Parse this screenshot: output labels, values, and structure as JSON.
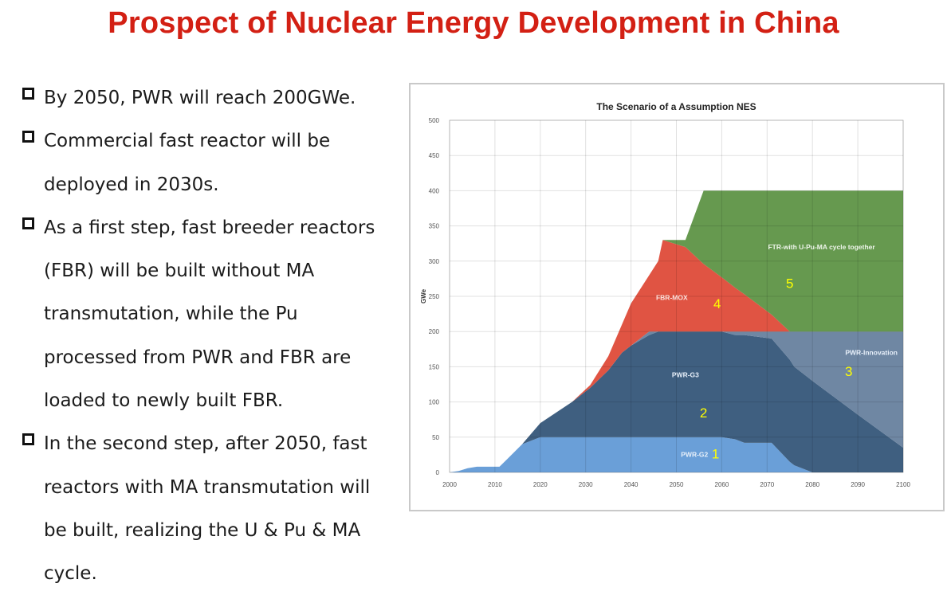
{
  "slide": {
    "title": "Prospect of Nuclear Energy Development in China",
    "bullets": [
      {
        "lines": [
          "By 2050, PWR will reach 200GWe."
        ]
      },
      {
        "lines": [
          "Commercial fast reactor will be",
          "deployed in 2030s."
        ]
      },
      {
        "lines": [
          "As a first step, fast breeder reactors",
          "(FBR) will be built without MA",
          "transmutation, while the Pu",
          "processed from PWR and FBR are",
          "loaded to newly built FBR."
        ]
      },
      {
        "lines": [
          "In the second step,  after 2050, fast",
          "reactors with MA transmutation will",
          "be built, realizing the U & Pu & MA",
          "cycle."
        ]
      }
    ]
  },
  "chart_data": {
    "type": "area",
    "stacked": true,
    "title": "The Scenario of a Assumption NES",
    "xlabel": "",
    "ylabel": "GWe",
    "xlim": [
      2000,
      2100
    ],
    "ylim": [
      0,
      500
    ],
    "xticks": [
      2000,
      2010,
      2020,
      2030,
      2040,
      2050,
      2060,
      2070,
      2080,
      2090,
      2100
    ],
    "yticks": [
      0,
      50,
      100,
      150,
      200,
      250,
      300,
      350,
      400,
      450,
      500
    ],
    "grid": true,
    "x": [
      2000,
      2002,
      2004,
      2006,
      2011,
      2016,
      2020,
      2027,
      2031,
      2035,
      2038,
      2040,
      2044,
      2046,
      2047,
      2052,
      2056,
      2060,
      2063,
      2065,
      2071,
      2075,
      2076,
      2080,
      2090,
      2100
    ],
    "series": [
      {
        "name": "PWR-G2",
        "number": "1",
        "color": "#6a9fd8",
        "values": [
          0,
          2,
          6,
          8,
          8,
          40,
          50,
          50,
          50,
          50,
          50,
          50,
          50,
          50,
          50,
          50,
          50,
          50,
          47,
          42,
          42,
          15,
          10,
          0,
          0,
          0
        ]
      },
      {
        "name": "PWR-G3",
        "number": "2",
        "color": "#3f5f80",
        "values": [
          0,
          0,
          0,
          0,
          0,
          0,
          20,
          50,
          70,
          95,
          120,
          130,
          145,
          150,
          150,
          150,
          150,
          150,
          148,
          153,
          148,
          145,
          140,
          130,
          82,
          35
        ]
      },
      {
        "name": "PWR-Innovation",
        "number": "3",
        "color": "#6f87a3",
        "values": [
          0,
          0,
          0,
          0,
          0,
          0,
          0,
          0,
          0,
          0,
          0,
          0,
          5,
          0,
          0,
          0,
          0,
          0,
          5,
          5,
          10,
          40,
          50,
          70,
          118,
          165
        ]
      },
      {
        "name": "FBR-MOX",
        "number": "4",
        "color": "#e05443",
        "values": [
          0,
          0,
          0,
          0,
          0,
          0,
          0,
          0,
          4,
          20,
          40,
          60,
          80,
          100,
          130,
          120,
          96,
          77,
          62,
          53,
          24,
          0,
          0,
          0,
          0,
          0
        ]
      },
      {
        "name": "FTR-with U-Pu-MA  cycle together",
        "number": "5",
        "color": "#66994f",
        "values": [
          0,
          0,
          0,
          0,
          0,
          0,
          0,
          0,
          0,
          0,
          0,
          0,
          0,
          0,
          0,
          10,
          104,
          123,
          138,
          147,
          176,
          200,
          200,
          200,
          200,
          200
        ]
      }
    ],
    "annotations": [
      {
        "text": "PWR-G2",
        "x": 2054,
        "y": 22,
        "color": "#e8f0fa"
      },
      {
        "text": "PWR-G3",
        "x": 2052,
        "y": 135,
        "color": "#e8f0fa"
      },
      {
        "text": "PWR-Innovation",
        "x": 2093,
        "y": 167,
        "color": "#e8f0fa"
      },
      {
        "text": "FBR-MOX",
        "x": 2049,
        "y": 245,
        "color": "#fbe3df"
      },
      {
        "text": "FTR-with U-Pu-MA  cycle together",
        "x": 2082,
        "y": 317,
        "color": "#eef5ea"
      },
      {
        "text": "1",
        "x": 2053,
        "y": 20,
        "color": "#ffff00"
      },
      {
        "text": "2",
        "x": 2056,
        "y": 78,
        "color": "#ffff00"
      },
      {
        "text": "3",
        "x": 2088,
        "y": 137,
        "color": "#ffff00"
      },
      {
        "text": "4",
        "x": 2059,
        "y": 233,
        "color": "#ffff00"
      },
      {
        "text": "5",
        "x": 2075,
        "y": 262,
        "color": "#ffff00"
      }
    ]
  }
}
